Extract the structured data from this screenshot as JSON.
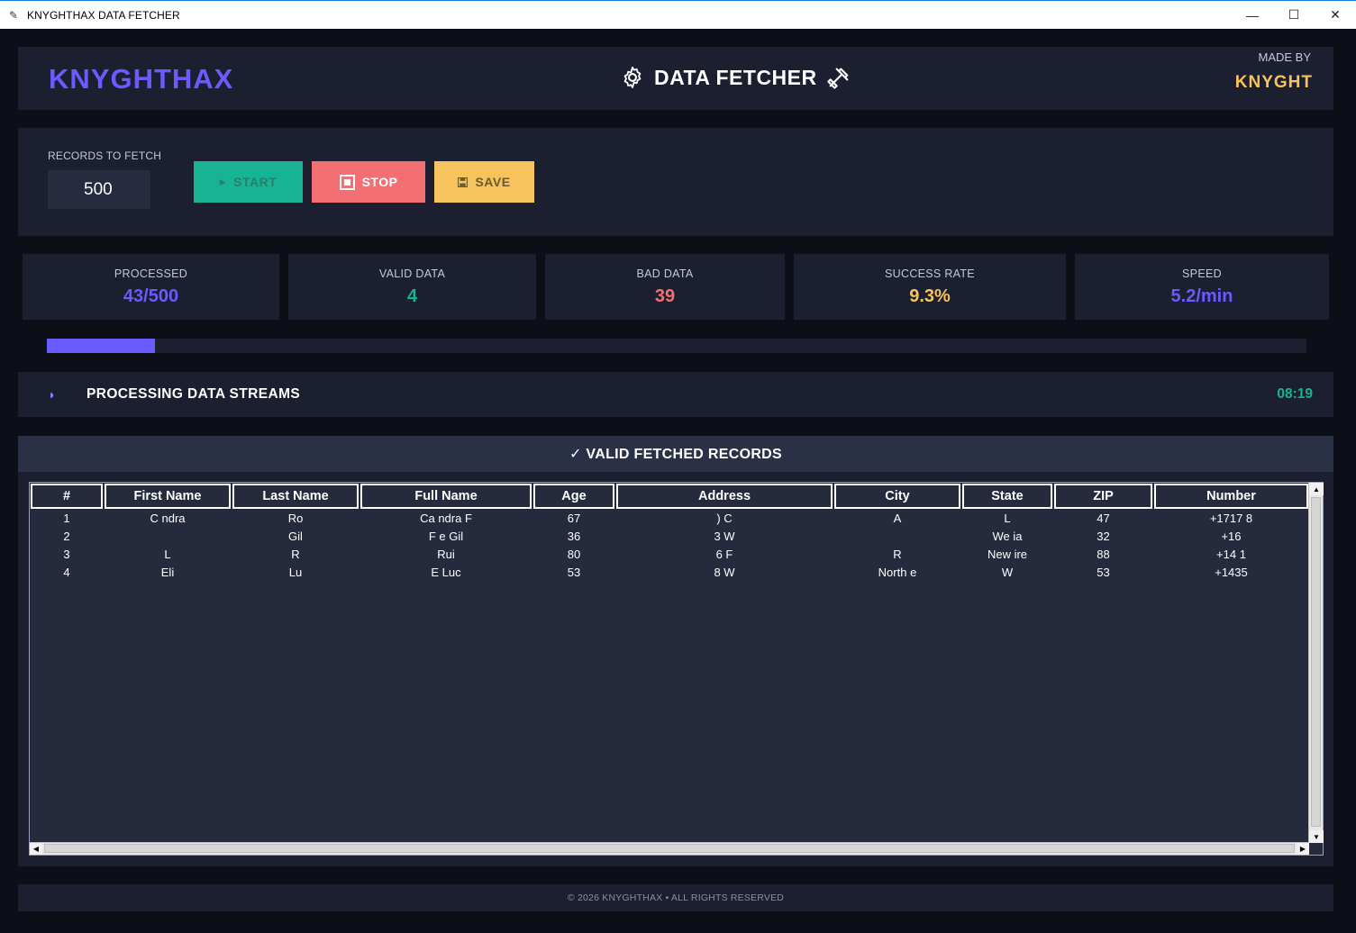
{
  "window": {
    "title": "KNYGHTHAX DATA FETCHER",
    "minimize": "—",
    "maximize": "☐",
    "close": "✕"
  },
  "header": {
    "brand": "KNYGHTHAX",
    "title": "DATA FETCHER",
    "made_by_label": "MADE BY",
    "made_by_name": "KNYGHT"
  },
  "controls": {
    "records_label": "RECORDS TO FETCH",
    "records_value": "500",
    "start_label": "START",
    "stop_label": "STOP",
    "save_label": "SAVE"
  },
  "stats": [
    {
      "label": "PROCESSED",
      "value": "43/500",
      "color": "#6a5bff"
    },
    {
      "label": "VALID DATA",
      "value": "4",
      "color": "#17b394"
    },
    {
      "label": "BAD DATA",
      "value": "39",
      "color": "#f26f73"
    },
    {
      "label": "SUCCESS RATE",
      "value": "9.3%",
      "color": "#f6c35c"
    },
    {
      "label": "SPEED",
      "value": "5.2/min",
      "color": "#6a5bff"
    }
  ],
  "progress": {
    "value": 43,
    "max": 500
  },
  "status": {
    "icon": "◑",
    "text": "PROCESSING DATA STREAMS",
    "timer": "08:19"
  },
  "records": {
    "title": "✓ VALID FETCHED RECORDS",
    "columns": [
      "#",
      "First Name",
      "Last Name",
      "Full Name",
      "Age",
      "Address",
      "City",
      "State",
      "ZIP",
      "Number"
    ],
    "rows": [
      [
        "1",
        "C      ndra",
        "Ro",
        "Ca     ndra F",
        "67",
        ") C",
        "A",
        "L",
        "47",
        "+1717        8"
      ],
      [
        "2",
        "",
        "Gil",
        "F     e Gil",
        "36",
        "3 W",
        "",
        "We        ia",
        "32",
        "+16"
      ],
      [
        "3",
        "L",
        "R",
        "Rui",
        "80",
        "6 F",
        "R",
        "New       ire",
        "88",
        "+14          1"
      ],
      [
        "4",
        "Eli",
        "Lu",
        "E    Luc",
        "53",
        "8      W",
        "North      e",
        "W",
        "53",
        "+1435"
      ]
    ]
  },
  "footer": "© 2026 KNYGHTHAX • ALL RIGHTS RESERVED"
}
